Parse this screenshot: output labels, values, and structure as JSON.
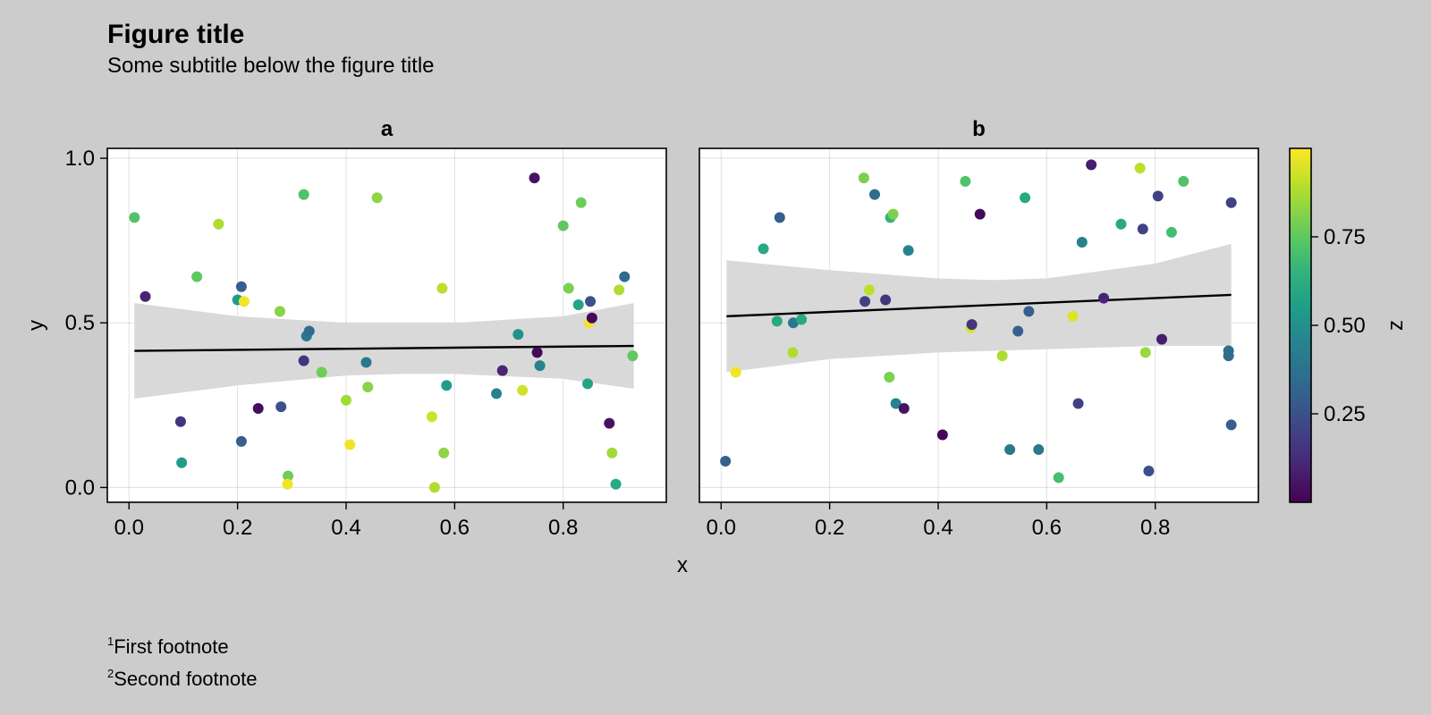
{
  "figure": {
    "title": "Figure title",
    "subtitle": "Some subtitle below the figure title",
    "footnotes": [
      {
        "marker": "1",
        "text": "First footnote"
      },
      {
        "marker": "2",
        "text": "Second footnote"
      }
    ]
  },
  "colors": {
    "background": "#cccccc",
    "plot_area": "#ffffff",
    "fit_line": "#000000",
    "confidence_band": "#d9d9d9",
    "colormap": "viridis"
  },
  "chart_data": [
    {
      "type": "scatter",
      "title": "a",
      "xlabel": "x",
      "ylabel": "y",
      "xlim": [
        -0.04,
        0.99
      ],
      "ylim": [
        -0.045,
        1.03
      ],
      "xticks": [
        "0.0",
        "0.2",
        "0.4",
        "0.6",
        "0.8"
      ],
      "yticks": [
        "0.0",
        "0.5",
        "1.0"
      ],
      "grid": true,
      "color_by": "z",
      "fit": {
        "x": [
          0.01,
          0.93
        ],
        "y": [
          0.415,
          0.43
        ]
      },
      "band": {
        "x": [
          0.01,
          0.2,
          0.4,
          0.5,
          0.6,
          0.8,
          0.93
        ],
        "upper": [
          0.56,
          0.52,
          0.5,
          0.5,
          0.5,
          0.52,
          0.56
        ],
        "lower": [
          0.27,
          0.31,
          0.34,
          0.345,
          0.345,
          0.33,
          0.3
        ]
      },
      "points": [
        {
          "x": 0.01,
          "y": 0.82,
          "z": 0.72
        },
        {
          "x": 0.03,
          "y": 0.58,
          "z": 0.1
        },
        {
          "x": 0.095,
          "y": 0.2,
          "z": 0.15
        },
        {
          "x": 0.097,
          "y": 0.075,
          "z": 0.55
        },
        {
          "x": 0.125,
          "y": 0.64,
          "z": 0.75
        },
        {
          "x": 0.165,
          "y": 0.8,
          "z": 0.88
        },
        {
          "x": 0.2,
          "y": 0.57,
          "z": 0.55
        },
        {
          "x": 0.207,
          "y": 0.61,
          "z": 0.3
        },
        {
          "x": 0.212,
          "y": 0.565,
          "z": 0.98
        },
        {
          "x": 0.207,
          "y": 0.14,
          "z": 0.3
        },
        {
          "x": 0.238,
          "y": 0.24,
          "z": 0.03
        },
        {
          "x": 0.28,
          "y": 0.245,
          "z": 0.25
        },
        {
          "x": 0.278,
          "y": 0.535,
          "z": 0.82
        },
        {
          "x": 0.293,
          "y": 0.035,
          "z": 0.78
        },
        {
          "x": 0.292,
          "y": 0.01,
          "z": 0.98
        },
        {
          "x": 0.322,
          "y": 0.89,
          "z": 0.72
        },
        {
          "x": 0.327,
          "y": 0.46,
          "z": 0.4
        },
        {
          "x": 0.332,
          "y": 0.475,
          "z": 0.35
        },
        {
          "x": 0.322,
          "y": 0.385,
          "z": 0.15
        },
        {
          "x": 0.355,
          "y": 0.35,
          "z": 0.78
        },
        {
          "x": 0.4,
          "y": 0.265,
          "z": 0.86
        },
        {
          "x": 0.407,
          "y": 0.13,
          "z": 0.98
        },
        {
          "x": 0.437,
          "y": 0.38,
          "z": 0.4
        },
        {
          "x": 0.44,
          "y": 0.305,
          "z": 0.82
        },
        {
          "x": 0.457,
          "y": 0.88,
          "z": 0.83
        },
        {
          "x": 0.558,
          "y": 0.215,
          "z": 0.93
        },
        {
          "x": 0.563,
          "y": 0.0,
          "z": 0.88
        },
        {
          "x": 0.577,
          "y": 0.605,
          "z": 0.9
        },
        {
          "x": 0.58,
          "y": 0.105,
          "z": 0.83
        },
        {
          "x": 0.585,
          "y": 0.31,
          "z": 0.55
        },
        {
          "x": 0.677,
          "y": 0.285,
          "z": 0.45
        },
        {
          "x": 0.688,
          "y": 0.355,
          "z": 0.1
        },
        {
          "x": 0.717,
          "y": 0.465,
          "z": 0.5
        },
        {
          "x": 0.725,
          "y": 0.295,
          "z": 0.93
        },
        {
          "x": 0.747,
          "y": 0.94,
          "z": 0.05
        },
        {
          "x": 0.752,
          "y": 0.41,
          "z": 0.02
        },
        {
          "x": 0.757,
          "y": 0.37,
          "z": 0.45
        },
        {
          "x": 0.8,
          "y": 0.795,
          "z": 0.75
        },
        {
          "x": 0.81,
          "y": 0.605,
          "z": 0.8
        },
        {
          "x": 0.828,
          "y": 0.555,
          "z": 0.58
        },
        {
          "x": 0.833,
          "y": 0.865,
          "z": 0.78
        },
        {
          "x": 0.845,
          "y": 0.315,
          "z": 0.58
        },
        {
          "x": 0.848,
          "y": 0.5,
          "z": 0.98
        },
        {
          "x": 0.85,
          "y": 0.565,
          "z": 0.25
        },
        {
          "x": 0.853,
          "y": 0.515,
          "z": 0.02
        },
        {
          "x": 0.885,
          "y": 0.195,
          "z": 0.05
        },
        {
          "x": 0.89,
          "y": 0.105,
          "z": 0.86
        },
        {
          "x": 0.897,
          "y": 0.01,
          "z": 0.6
        },
        {
          "x": 0.903,
          "y": 0.6,
          "z": 0.88
        },
        {
          "x": 0.913,
          "y": 0.64,
          "z": 0.35
        },
        {
          "x": 0.928,
          "y": 0.4,
          "z": 0.75
        }
      ]
    },
    {
      "type": "scatter",
      "title": "b",
      "xlabel": "x",
      "ylabel": "",
      "xlim": [
        -0.04,
        0.99
      ],
      "ylim": [
        -0.045,
        1.03
      ],
      "xticks": [
        "0.0",
        "0.2",
        "0.4",
        "0.6",
        "0.8"
      ],
      "yticks": [],
      "grid": true,
      "color_by": "z",
      "fit": {
        "x": [
          0.01,
          0.94
        ],
        "y": [
          0.52,
          0.585
        ]
      },
      "band": {
        "x": [
          0.01,
          0.2,
          0.4,
          0.5,
          0.6,
          0.8,
          0.94
        ],
        "upper": [
          0.69,
          0.66,
          0.635,
          0.63,
          0.635,
          0.68,
          0.74
        ],
        "lower": [
          0.35,
          0.39,
          0.41,
          0.415,
          0.42,
          0.43,
          0.43
        ]
      },
      "points": [
        {
          "x": 0.008,
          "y": 0.08,
          "z": 0.3
        },
        {
          "x": 0.027,
          "y": 0.35,
          "z": 0.98
        },
        {
          "x": 0.078,
          "y": 0.725,
          "z": 0.6
        },
        {
          "x": 0.103,
          "y": 0.505,
          "z": 0.6
        },
        {
          "x": 0.108,
          "y": 0.82,
          "z": 0.3
        },
        {
          "x": 0.132,
          "y": 0.41,
          "z": 0.88
        },
        {
          "x": 0.133,
          "y": 0.5,
          "z": 0.4
        },
        {
          "x": 0.148,
          "y": 0.51,
          "z": 0.6
        },
        {
          "x": 0.263,
          "y": 0.94,
          "z": 0.8
        },
        {
          "x": 0.265,
          "y": 0.565,
          "z": 0.2
        },
        {
          "x": 0.273,
          "y": 0.6,
          "z": 0.9
        },
        {
          "x": 0.283,
          "y": 0.89,
          "z": 0.35
        },
        {
          "x": 0.303,
          "y": 0.57,
          "z": 0.15
        },
        {
          "x": 0.31,
          "y": 0.335,
          "z": 0.8
        },
        {
          "x": 0.312,
          "y": 0.82,
          "z": 0.65
        },
        {
          "x": 0.317,
          "y": 0.83,
          "z": 0.8
        },
        {
          "x": 0.322,
          "y": 0.255,
          "z": 0.45
        },
        {
          "x": 0.337,
          "y": 0.24,
          "z": 0.05
        },
        {
          "x": 0.345,
          "y": 0.72,
          "z": 0.45
        },
        {
          "x": 0.408,
          "y": 0.16,
          "z": 0.02
        },
        {
          "x": 0.45,
          "y": 0.93,
          "z": 0.72
        },
        {
          "x": 0.46,
          "y": 0.485,
          "z": 0.95
        },
        {
          "x": 0.462,
          "y": 0.495,
          "z": 0.15
        },
        {
          "x": 0.477,
          "y": 0.83,
          "z": 0.02
        },
        {
          "x": 0.518,
          "y": 0.4,
          "z": 0.88
        },
        {
          "x": 0.532,
          "y": 0.115,
          "z": 0.4
        },
        {
          "x": 0.547,
          "y": 0.475,
          "z": 0.3
        },
        {
          "x": 0.56,
          "y": 0.88,
          "z": 0.6
        },
        {
          "x": 0.567,
          "y": 0.535,
          "z": 0.3
        },
        {
          "x": 0.585,
          "y": 0.115,
          "z": 0.4
        },
        {
          "x": 0.622,
          "y": 0.03,
          "z": 0.7
        },
        {
          "x": 0.648,
          "y": 0.52,
          "z": 0.95
        },
        {
          "x": 0.658,
          "y": 0.255,
          "z": 0.2
        },
        {
          "x": 0.665,
          "y": 0.745,
          "z": 0.45
        },
        {
          "x": 0.682,
          "y": 0.98,
          "z": 0.08
        },
        {
          "x": 0.705,
          "y": 0.575,
          "z": 0.1
        },
        {
          "x": 0.737,
          "y": 0.8,
          "z": 0.6
        },
        {
          "x": 0.772,
          "y": 0.97,
          "z": 0.9
        },
        {
          "x": 0.777,
          "y": 0.785,
          "z": 0.2
        },
        {
          "x": 0.782,
          "y": 0.41,
          "z": 0.85
        },
        {
          "x": 0.788,
          "y": 0.05,
          "z": 0.25
        },
        {
          "x": 0.805,
          "y": 0.885,
          "z": 0.2
        },
        {
          "x": 0.812,
          "y": 0.45,
          "z": 0.08
        },
        {
          "x": 0.83,
          "y": 0.775,
          "z": 0.7
        },
        {
          "x": 0.852,
          "y": 0.93,
          "z": 0.72
        },
        {
          "x": 0.935,
          "y": 0.415,
          "z": 0.35
        },
        {
          "x": 0.935,
          "y": 0.4,
          "z": 0.35
        },
        {
          "x": 0.94,
          "y": 0.19,
          "z": 0.3
        },
        {
          "x": 0.94,
          "y": 0.865,
          "z": 0.2
        }
      ]
    }
  ],
  "colorbar": {
    "label": "z",
    "range": [
      0.0,
      1.0
    ],
    "ticks": [
      0.25,
      0.5,
      0.75
    ],
    "tick_labels": [
      "0.25",
      "0.50",
      "0.75"
    ]
  },
  "shared_xlabel": "x"
}
